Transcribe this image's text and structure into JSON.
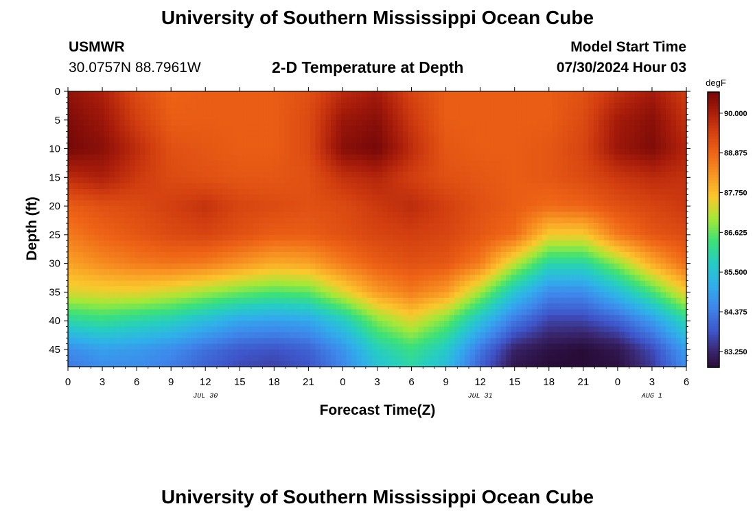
{
  "page": {
    "title_top": "University of Southern Mississippi Ocean Cube",
    "title_bottom": "University of Southern Mississippi Ocean Cube",
    "station": "USMWR",
    "coords": "30.0757N  88.7961W",
    "subtitle": "2-D Temperature at Depth",
    "model_label": "Model Start Time",
    "model_time": "07/30/2024 Hour 03"
  },
  "chart_data": {
    "type": "heatmap",
    "title": "2-D Temperature at Depth",
    "xlabel": "Forecast Time(Z)",
    "ylabel": "Depth (ft)",
    "colorbar_unit": "degF",
    "xlim": [
      0,
      54
    ],
    "ylim": [
      0,
      48
    ],
    "x_ticks": [
      0,
      3,
      6,
      9,
      12,
      15,
      18,
      21,
      24,
      27,
      30,
      33,
      36,
      39,
      42,
      45,
      48,
      51,
      54
    ],
    "x_tick_labels": [
      "0",
      "3",
      "6",
      "9",
      "12",
      "15",
      "18",
      "21",
      "0",
      "3",
      "6",
      "9",
      "12",
      "15",
      "18",
      "21",
      "0",
      "3",
      "6"
    ],
    "y_ticks": [
      0,
      5,
      10,
      15,
      20,
      25,
      30,
      35,
      40,
      45
    ],
    "y_tick_labels": [
      "0",
      "5",
      "10",
      "15",
      "20",
      "25",
      "30",
      "35",
      "40",
      "45"
    ],
    "date_labels": [
      {
        "text": "JUL 30",
        "hour": 12
      },
      {
        "text": "JUL 31",
        "hour": 36
      },
      {
        "text": "AUG 1",
        "hour": 51
      }
    ],
    "colorbar_range": [
      82.8,
      90.6
    ],
    "colorbar_ticks": [
      90.0,
      88.875,
      87.75,
      86.625,
      85.5,
      84.375,
      83.25
    ],
    "colorbar_tick_labels": [
      "90.000",
      "88.875",
      "87.750",
      "86.625",
      "85.500",
      "84.375",
      "83.250"
    ],
    "x_hours": [
      0,
      3,
      6,
      9,
      12,
      15,
      18,
      21,
      24,
      27,
      30,
      33,
      36,
      39,
      42,
      45,
      48,
      51,
      54
    ],
    "depths_ft": [
      0,
      5,
      10,
      15,
      20,
      25,
      30,
      35,
      40,
      45,
      48
    ],
    "temperature_degF": [
      [
        90.3,
        90.0,
        89.3,
        88.9,
        89.0,
        89.0,
        89.0,
        89.2,
        89.8,
        90.1,
        89.4,
        89.0,
        89.0,
        89.0,
        89.0,
        89.2,
        89.7,
        90.1,
        89.5
      ],
      [
        90.5,
        90.2,
        89.5,
        89.0,
        89.0,
        89.0,
        89.0,
        89.3,
        90.2,
        90.4,
        89.6,
        89.0,
        89.0,
        89.0,
        89.0,
        89.3,
        90.1,
        90.4,
        89.7
      ],
      [
        90.6,
        90.4,
        89.8,
        89.2,
        89.1,
        89.0,
        89.0,
        89.3,
        90.4,
        90.6,
        89.8,
        89.1,
        89.0,
        89.0,
        89.1,
        89.4,
        90.2,
        90.5,
        89.9
      ],
      [
        89.8,
        90.0,
        89.6,
        89.3,
        89.2,
        89.1,
        89.1,
        89.2,
        89.7,
        89.9,
        89.5,
        89.2,
        89.1,
        89.0,
        89.1,
        89.3,
        89.6,
        89.8,
        89.7
      ],
      [
        89.0,
        89.2,
        89.3,
        89.5,
        89.7,
        89.4,
        89.3,
        89.2,
        89.3,
        89.6,
        89.8,
        89.5,
        89.2,
        89.0,
        88.8,
        88.9,
        89.2,
        89.4,
        89.6
      ],
      [
        88.6,
        88.9,
        89.1,
        89.3,
        89.4,
        89.2,
        89.0,
        89.0,
        89.2,
        89.4,
        89.5,
        89.4,
        89.1,
        88.8,
        87.6,
        87.6,
        88.6,
        89.1,
        89.3
      ],
      [
        88.1,
        88.4,
        88.6,
        88.7,
        88.6,
        88.3,
        88.0,
        88.1,
        88.6,
        89.0,
        89.2,
        89.1,
        88.6,
        87.2,
        86.0,
        86.0,
        86.9,
        88.0,
        88.8
      ],
      [
        87.4,
        87.5,
        87.5,
        87.3,
        87.0,
        86.7,
        86.5,
        86.6,
        87.4,
        88.2,
        88.6,
        88.2,
        87.0,
        85.6,
        84.6,
        84.6,
        85.4,
        86.4,
        87.6
      ],
      [
        86.0,
        86.2,
        86.0,
        85.8,
        85.4,
        85.0,
        84.9,
        85.0,
        85.7,
        86.8,
        87.4,
        86.7,
        85.5,
        84.3,
        83.6,
        83.6,
        84.0,
        84.8,
        86.0
      ],
      [
        84.6,
        84.9,
        84.8,
        84.6,
        84.2,
        83.9,
        83.8,
        84.0,
        84.7,
        85.8,
        86.3,
        85.7,
        84.3,
        83.2,
        82.9,
        82.8,
        83.0,
        83.7,
        84.9
      ],
      [
        84.3,
        84.6,
        84.6,
        84.4,
        84.0,
        83.7,
        83.6,
        83.8,
        84.5,
        85.5,
        86.0,
        85.4,
        84.0,
        83.0,
        82.8,
        82.8,
        82.9,
        83.5,
        84.6
      ]
    ]
  }
}
